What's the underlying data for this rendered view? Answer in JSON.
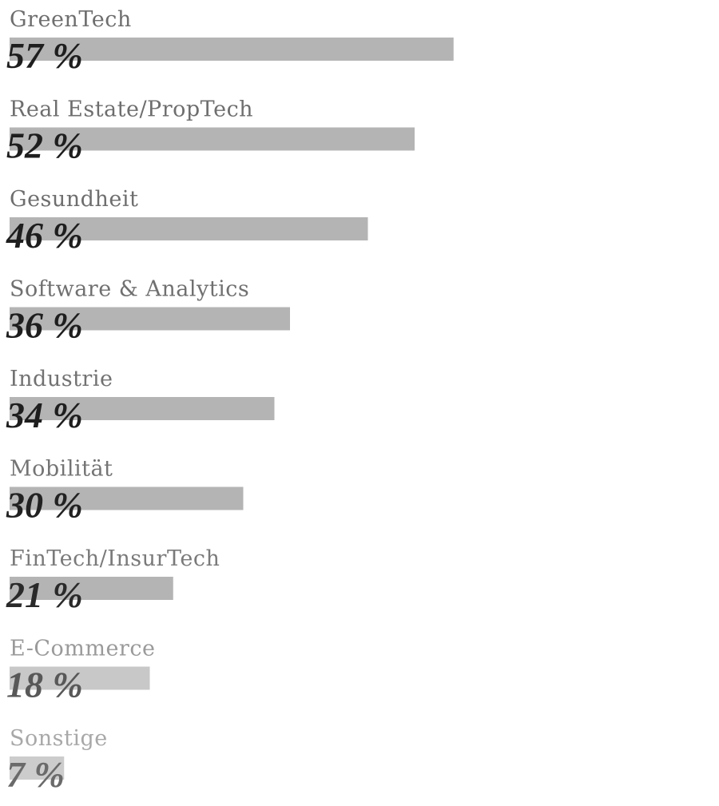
{
  "chart_data": {
    "type": "bar",
    "orientation": "horizontal",
    "categories": [
      "GreenTech",
      "Real Estate/PropTech",
      "Gesundheit",
      "Software & Analytics",
      "Industrie",
      "Mobilität",
      "FinTech/InsurTech",
      "E-Commerce",
      "Sonstige"
    ],
    "values": [
      57,
      52,
      46,
      36,
      34,
      30,
      21,
      18,
      7
    ],
    "value_labels": [
      "57 %",
      "52 %",
      "46 %",
      "36 %",
      "34 %",
      "30 %",
      "21 %",
      "18 %",
      "7 %"
    ],
    "unit": "%",
    "title": "",
    "xlabel": "",
    "ylabel": "",
    "grid": false,
    "legend": "none",
    "colors": {
      "bar": [
        "#b4b4b4",
        "#b4b4b4",
        "#b4b4b4",
        "#b4b4b4",
        "#b4b4b4",
        "#b4b4b4",
        "#b4b4b4",
        "#c8c8c8",
        "#cccccc"
      ],
      "category_text": [
        "#6e6e6e",
        "#6e6e6e",
        "#6e6e6e",
        "#707070",
        "#727272",
        "#747474",
        "#7a7a7a",
        "#9a9a9a",
        "#a8a8a8"
      ],
      "value_text": [
        "#1e1e1e",
        "#1e1e1e",
        "#1e1e1e",
        "#1e1e1e",
        "#1e1e1e",
        "#222222",
        "#2a2a2a",
        "#585858",
        "#6a6a6a"
      ]
    }
  }
}
